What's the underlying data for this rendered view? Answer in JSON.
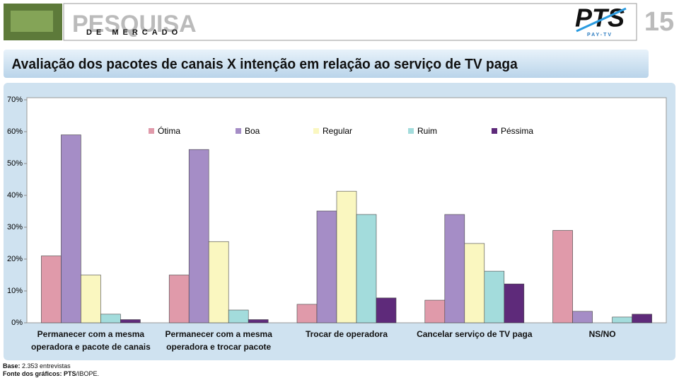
{
  "header": {
    "brand": "PESQUISA",
    "brand_sub": "DE MERCADO",
    "logo": "PTS",
    "logo_sub": "PAY-TV",
    "page_number": "15"
  },
  "chart_data": {
    "type": "bar",
    "title": "Avaliação dos pacotes de canais X intenção em relação ao serviço de TV paga",
    "categories": [
      "Permanecer com a mesma operadora e pacote de canais",
      "Permanecer com a mesma operadora e trocar pacote",
      "Trocar de operadora",
      "Cancelar serviço de TV paga",
      "NS/NO"
    ],
    "series": [
      {
        "name": "Ótima",
        "color": "#e09aaa",
        "values": [
          21,
          15,
          5.8,
          7.1,
          29
        ]
      },
      {
        "name": "Boa",
        "color": "#a58dc6",
        "values": [
          59,
          54.4,
          35.1,
          34,
          3.6
        ]
      },
      {
        "name": "Regular",
        "color": "#faf7c0",
        "values": [
          15,
          25.5,
          41.3,
          24.9,
          0
        ]
      },
      {
        "name": "Ruim",
        "color": "#a3dcdc",
        "values": [
          2.7,
          4,
          34,
          16.2,
          1.8
        ]
      },
      {
        "name": "Péssima",
        "color": "#5e2a7a",
        "values": [
          1,
          1,
          7.8,
          12.2,
          2.7
        ]
      }
    ],
    "ylim": [
      0,
      70
    ],
    "yticks": [
      {
        "value": 0,
        "label": "0%"
      },
      {
        "value": 10,
        "label": "10%"
      },
      {
        "value": 20,
        "label": "20%"
      },
      {
        "value": 30,
        "label": "30%"
      },
      {
        "value": 40,
        "label": "40%"
      },
      {
        "value": 50,
        "label": "50%"
      },
      {
        "value": 60,
        "label": "60%"
      },
      {
        "value": 70,
        "label": "70%"
      }
    ],
    "legend": "top"
  },
  "footer": {
    "base_label": "Base:",
    "base_text": "2.353 entrevistas",
    "source_label": "Fonte dos gráficos:",
    "source_text": "PTS",
    "source_rest": "/IBOPE."
  }
}
